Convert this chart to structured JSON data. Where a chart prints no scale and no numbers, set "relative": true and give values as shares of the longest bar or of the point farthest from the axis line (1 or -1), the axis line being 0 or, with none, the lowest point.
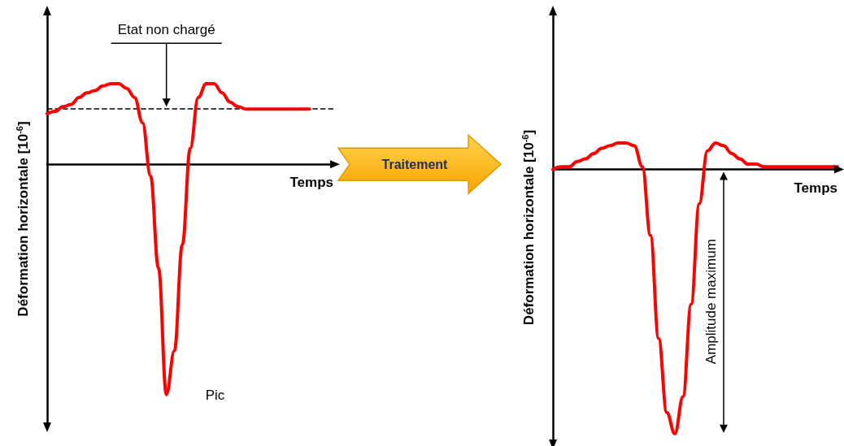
{
  "chart_data": [
    {
      "type": "line",
      "relative": true,
      "ylabel": "Déformation horizontale [10$^{-6}$]",
      "xlabel": "Temps",
      "marker": "none",
      "line_style": "solid",
      "grid": false,
      "categories": [
        null,
        null,
        null,
        null,
        null,
        null,
        null,
        null,
        null,
        null,
        null,
        null,
        null,
        null,
        null,
        null,
        null,
        null,
        null,
        null,
        null,
        null,
        null,
        null,
        null,
        null,
        null,
        null,
        null,
        null,
        null,
        null,
        null,
        null,
        null,
        null,
        null
      ],
      "series": [
        {
          "color": "#ff0000",
          "values": [
            0.22,
            0.23,
            0.25,
            0.26,
            0.29,
            0.31,
            0.32,
            0.34,
            0.35,
            0.35,
            0.33,
            0.29,
            0.18,
            -0.05,
            -0.45,
            -1,
            -0.81,
            -0.35,
            0.07,
            0.29,
            0.35,
            0.35,
            0.31,
            0.27,
            0.25,
            0.24,
            0.24,
            0.24,
            0.24,
            0.24,
            0.24,
            0.24,
            0.24,
            0.24,
            null,
            null,
            null
          ]
        }
      ],
      "ref_lines": [
        {
          "axis": "y",
          "value": 0.24,
          "label": "Etat non chargé",
          "line_style": "dashed",
          "color": "#000000"
        }
      ],
      "annotations": [
        "Traitement",
        "Pic"
      ]
    },
    {
      "type": "line",
      "relative": true,
      "ylabel": "Déformation horizontale [10$^{-6}$]",
      "xlabel": "Temps",
      "marker": "none",
      "line_style": "solid",
      "grid": false,
      "categories": [
        null,
        null,
        null,
        null,
        null,
        null,
        null,
        null,
        null,
        null,
        null,
        null,
        null,
        null,
        null,
        null,
        null,
        null,
        null,
        null,
        null,
        null,
        null,
        null,
        null,
        null,
        null,
        null,
        null,
        null,
        null,
        null,
        null,
        null,
        null,
        null
      ],
      "series": [
        {
          "color": "#ff0000",
          "values": [
            0,
            0.01,
            0.01,
            0.03,
            0.04,
            0.06,
            0.08,
            0.09,
            0.1,
            0.1,
            0.09,
            0.01,
            -0.25,
            -0.64,
            -0.92,
            -1,
            -0.86,
            -0.51,
            -0.13,
            0.07,
            0.1,
            0.09,
            0.06,
            0.04,
            0.02,
            0.02,
            0.01,
            0.01,
            0.01,
            0.01,
            0.01,
            0.01,
            0.01,
            0.01,
            0.01,
            0.01
          ]
        }
      ],
      "annotations": [
        "Amplitude maximum"
      ]
    }
  ]
}
